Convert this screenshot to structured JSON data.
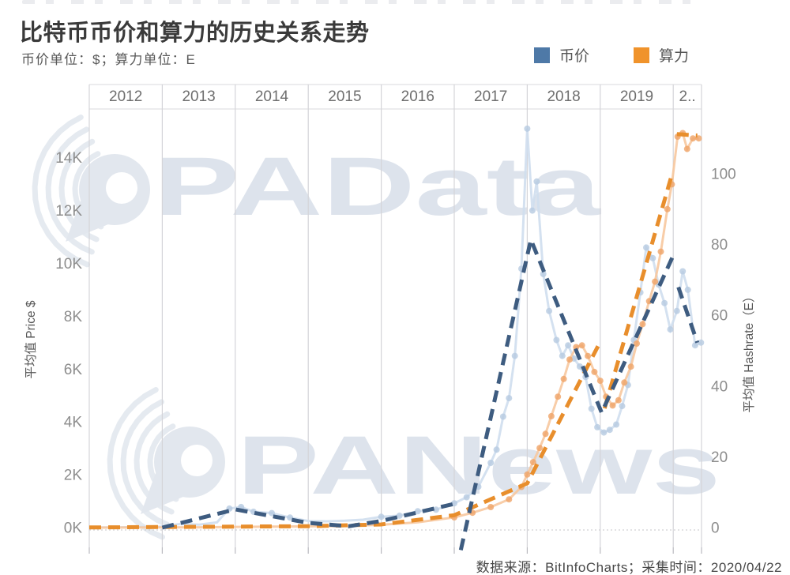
{
  "header": {
    "title": "比特币币价和算力的历史关系走势",
    "subtitle": "币价单位：$；算力单位：E"
  },
  "legend": [
    {
      "label": "币价",
      "color": "#4e79a7"
    },
    {
      "label": "算力",
      "color": "#f0932b"
    }
  ],
  "watermarks": [
    {
      "text": "PAData"
    },
    {
      "text": "PANews"
    }
  ],
  "footer": {
    "source_text": "数据来源：BitInfoCharts；采集时间：2020/04/22"
  },
  "chart_data": {
    "type": "line",
    "title": "比特币币价和算力的历史关系走势",
    "legend_position": "top-right",
    "grid": {
      "vertical_gridlines": true,
      "horizontal_gridlines": false,
      "dotted_zero_baseline": true
    },
    "x_axis": {
      "tick_labels": [
        "2012",
        "2013",
        "2014",
        "2015",
        "2016",
        "2017",
        "2018",
        "2019",
        "2.."
      ],
      "range_years": [
        2012,
        2020.42
      ]
    },
    "left_axis": {
      "title": "平均值 Price $",
      "unit": "$K",
      "tick_labels": [
        "0K",
        "2K",
        "4K",
        "6K",
        "8K",
        "10K",
        "12K",
        "14K"
      ],
      "tick_values": [
        0,
        2,
        4,
        6,
        8,
        10,
        12,
        14
      ],
      "range": [
        0,
        16.8
      ]
    },
    "right_axis": {
      "title": "平均值 Hashrate（E）",
      "unit": "E",
      "tick_labels": [
        "0",
        "20",
        "40",
        "60",
        "80",
        "100"
      ],
      "tick_values": [
        0,
        20,
        40,
        60,
        80,
        100
      ],
      "range": [
        0,
        125
      ]
    },
    "series": [
      {
        "id": "price-actual",
        "legend_label": "币价",
        "variant": "actual-monthly-average",
        "axis": "left",
        "style": "solid",
        "color": "#cfdeee",
        "dot_color": "#b6cbe1",
        "width": 3,
        "dots": true,
        "segments": [
          [
            [
              2012.0,
              0.01
            ],
            [
              2012.33,
              0.01
            ],
            [
              2012.67,
              0.02
            ],
            [
              2013.0,
              0.04
            ],
            [
              2013.25,
              0.14
            ],
            [
              2013.5,
              0.11
            ],
            [
              2013.75,
              0.2
            ],
            [
              2013.92,
              0.72
            ],
            [
              2014.08,
              0.78
            ],
            [
              2014.25,
              0.6
            ],
            [
              2014.5,
              0.55
            ],
            [
              2014.75,
              0.38
            ],
            [
              2015.0,
              0.25
            ],
            [
              2015.25,
              0.24
            ],
            [
              2015.5,
              0.26
            ],
            [
              2015.75,
              0.3
            ],
            [
              2016.0,
              0.41
            ],
            [
              2016.25,
              0.45
            ],
            [
              2016.5,
              0.62
            ],
            [
              2016.75,
              0.68
            ],
            [
              2017.0,
              0.92
            ],
            [
              2017.17,
              1.15
            ],
            [
              2017.33,
              1.55
            ],
            [
              2017.5,
              2.45
            ],
            [
              2017.58,
              2.95
            ],
            [
              2017.67,
              4.2
            ],
            [
              2017.75,
              4.9
            ],
            [
              2017.83,
              6.5
            ],
            [
              2017.92,
              9.8
            ],
            [
              2018.0,
              15.1
            ],
            [
              2018.07,
              12.0
            ],
            [
              2018.13,
              13.1
            ],
            [
              2018.22,
              9.6
            ],
            [
              2018.3,
              8.2
            ],
            [
              2018.4,
              7.1
            ],
            [
              2018.48,
              6.5
            ],
            [
              2018.56,
              6.9
            ],
            [
              2018.64,
              6.4
            ],
            [
              2018.72,
              6.1
            ],
            [
              2018.8,
              5.7
            ],
            [
              2018.88,
              4.5
            ],
            [
              2018.96,
              3.8
            ],
            [
              2019.05,
              3.6
            ],
            [
              2019.13,
              3.7
            ],
            [
              2019.22,
              3.9
            ],
            [
              2019.3,
              4.6
            ],
            [
              2019.38,
              5.4
            ],
            [
              2019.46,
              7.1
            ],
            [
              2019.55,
              8.9
            ],
            [
              2019.63,
              10.6
            ],
            [
              2019.72,
              10.2
            ],
            [
              2019.8,
              9.2
            ],
            [
              2019.88,
              8.5
            ],
            [
              2019.96,
              7.5
            ],
            [
              2020.05,
              8.2
            ],
            [
              2020.13,
              9.7
            ],
            [
              2020.2,
              9.0
            ],
            [
              2020.3,
              6.9
            ],
            [
              2020.38,
              7.0
            ]
          ]
        ]
      },
      {
        "id": "hashrate-actual",
        "legend_label": "算力",
        "variant": "actual-monthly-average",
        "axis": "right",
        "style": "solid",
        "color": "#f7c89e",
        "dot_color": "#efa468",
        "width": 3,
        "dots": true,
        "segments": [
          [
            [
              2012.0,
              0.01
            ],
            [
              2012.5,
              0.02
            ],
            [
              2013.0,
              0.05
            ],
            [
              2013.5,
              0.1
            ],
            [
              2014.0,
              0.2
            ],
            [
              2014.5,
              0.3
            ],
            [
              2015.0,
              0.35
            ],
            [
              2015.5,
              0.45
            ],
            [
              2016.0,
              0.8
            ],
            [
              2016.5,
              1.5
            ],
            [
              2017.0,
              2.9
            ],
            [
              2017.25,
              4.2
            ],
            [
              2017.5,
              5.8
            ],
            [
              2017.75,
              8.0
            ],
            [
              2017.92,
              11.5
            ],
            [
              2018.0,
              15.0
            ],
            [
              2018.08,
              18.5
            ],
            [
              2018.17,
              22.5
            ],
            [
              2018.25,
              26.5
            ],
            [
              2018.33,
              31.5
            ],
            [
              2018.42,
              37.0
            ],
            [
              2018.5,
              42.0
            ],
            [
              2018.58,
              47.5
            ],
            [
              2018.67,
              51.0
            ],
            [
              2018.75,
              51.5
            ],
            [
              2018.83,
              48.5
            ],
            [
              2018.92,
              44.0
            ],
            [
              2019.0,
              41.5
            ],
            [
              2019.08,
              37.0
            ],
            [
              2019.17,
              34.5
            ],
            [
              2019.25,
              36.0
            ],
            [
              2019.33,
              41.0
            ],
            [
              2019.42,
              45.5
            ],
            [
              2019.5,
              52.0
            ],
            [
              2019.58,
              57.5
            ],
            [
              2019.67,
              64.0
            ],
            [
              2019.75,
              69.5
            ],
            [
              2019.83,
              78.0
            ],
            [
              2019.92,
              90.0
            ],
            [
              2019.98,
              97.0
            ],
            [
              2020.06,
              110.5
            ],
            [
              2020.13,
              111.5
            ],
            [
              2020.19,
              107.0
            ],
            [
              2020.27,
              110.0
            ],
            [
              2020.35,
              110.0
            ]
          ]
        ]
      },
      {
        "id": "hashrate-trend",
        "legend_label": "算力",
        "variant": "trend-dashed",
        "axis": "right",
        "style": "dashed",
        "color": "#e88e2c",
        "width": 5,
        "dash": "15 9",
        "dots": false,
        "segments": [
          [
            [
              2012.0,
              0.05
            ],
            [
              2015.0,
              0.4
            ],
            [
              2016.0,
              0.9
            ],
            [
              2017.0,
              3.5
            ],
            [
              2018.0,
              12.5
            ],
            [
              2018.97,
              51.3
            ]
          ],
          [
            [
              2019.06,
              33.7
            ],
            [
              2019.97,
              98.9
            ]
          ],
          [
            [
              2020.05,
              111.2
            ],
            [
              2020.33,
              110.8
            ]
          ]
        ]
      },
      {
        "id": "price-trend",
        "legend_label": "币价",
        "variant": "trend-dashed",
        "axis": "left",
        "style": "dashed",
        "color": "#3e5c80",
        "width": 5,
        "dash": "15 9",
        "dots": false,
        "segments": [
          [
            [
              2013.0,
              0.0
            ],
            [
              2014.0,
              0.69
            ],
            [
              2015.0,
              0.18
            ],
            [
              2015.55,
              0.05
            ],
            [
              2016.0,
              0.25
            ],
            [
              2017.0,
              0.9
            ]
          ],
          [
            [
              2017.09,
              -0.85
            ],
            [
              2018.05,
              10.9
            ],
            [
              2019.02,
              4.35
            ],
            [
              2020.0,
              10.3
            ]
          ],
          [
            [
              2020.07,
              9.1
            ],
            [
              2020.33,
              7.0
            ]
          ]
        ]
      }
    ]
  }
}
